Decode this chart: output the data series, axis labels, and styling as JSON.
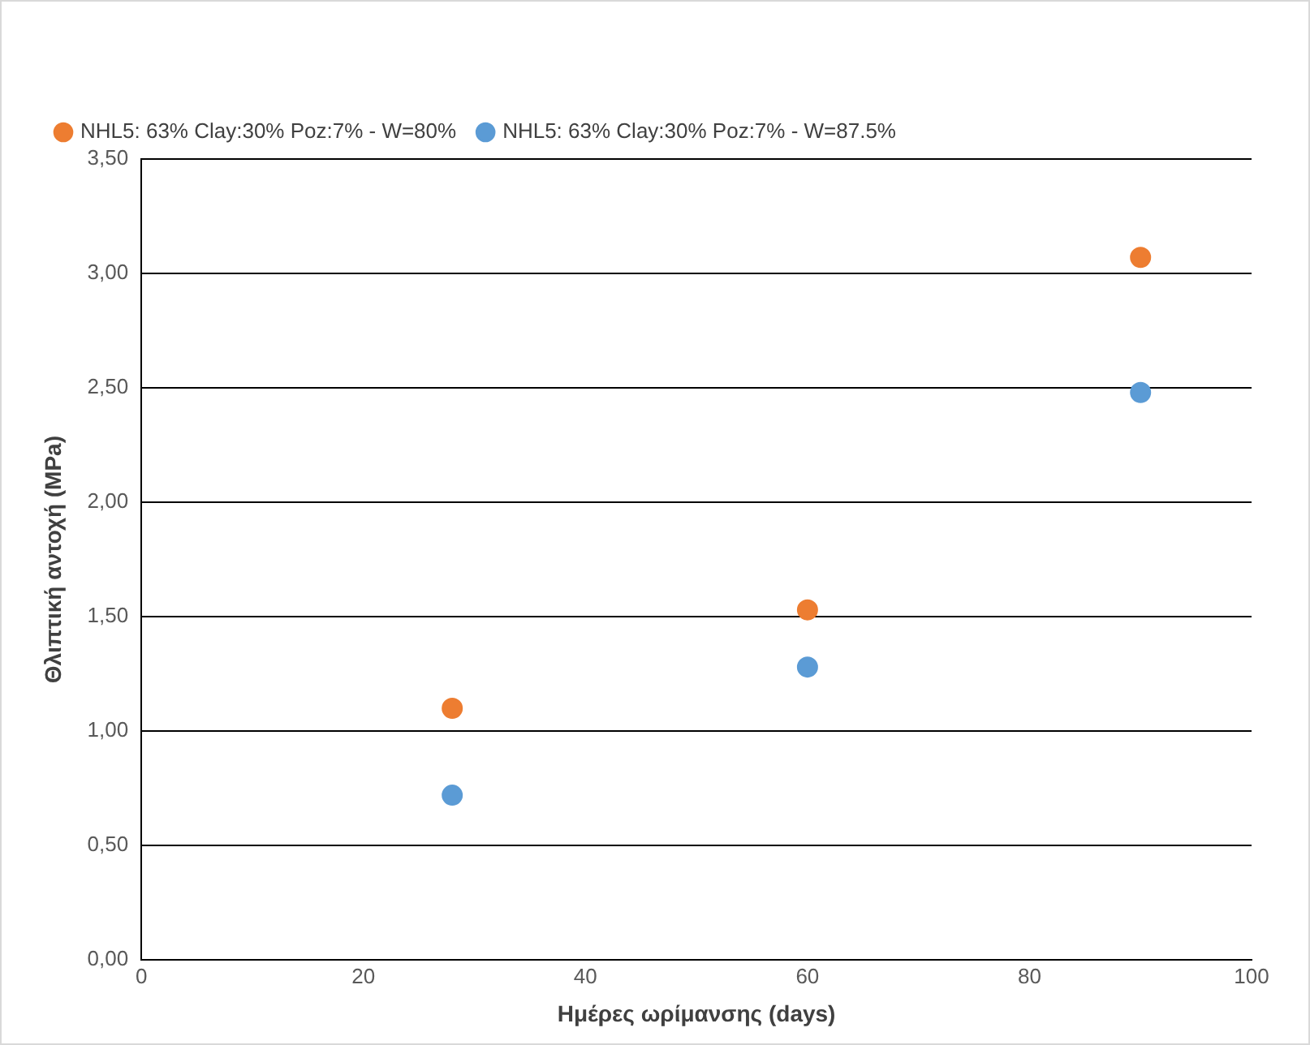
{
  "chart_data": {
    "type": "scatter",
    "xlabel": "Ημέρες ωρίμανσης (days)",
    "ylabel": "Θλιπτική αντοχή (MPa)",
    "series": [
      {
        "name": "NHL5: 63% Clay:30% Poz:7% - W=80%",
        "color": "#ed7d31",
        "x": [
          28,
          60,
          90
        ],
        "values": [
          1.1,
          1.53,
          3.07
        ]
      },
      {
        "name": "NHL5: 63% Clay:30% Poz:7% - W=87.5%",
        "color": "#5b9bd5",
        "x": [
          28,
          60,
          90
        ],
        "values": [
          0.72,
          1.28,
          2.48
        ]
      }
    ],
    "xlim": [
      0,
      100
    ],
    "xticks": [
      0,
      20,
      40,
      60,
      80,
      100
    ],
    "ylim": [
      0,
      3.5
    ],
    "yticks": [
      {
        "value": 0,
        "label": "0,00"
      },
      {
        "value": 0.5,
        "label": "0,50"
      },
      {
        "value": 1,
        "label": "1,00"
      },
      {
        "value": 1.5,
        "label": "1,50"
      },
      {
        "value": 2,
        "label": "2,00"
      },
      {
        "value": 2.5,
        "label": "2,50"
      },
      {
        "value": 3,
        "label": "3,00"
      },
      {
        "value": 3.5,
        "label": "3,50"
      }
    ],
    "grid": "y",
    "legend": "top left",
    "marker": "circle"
  }
}
